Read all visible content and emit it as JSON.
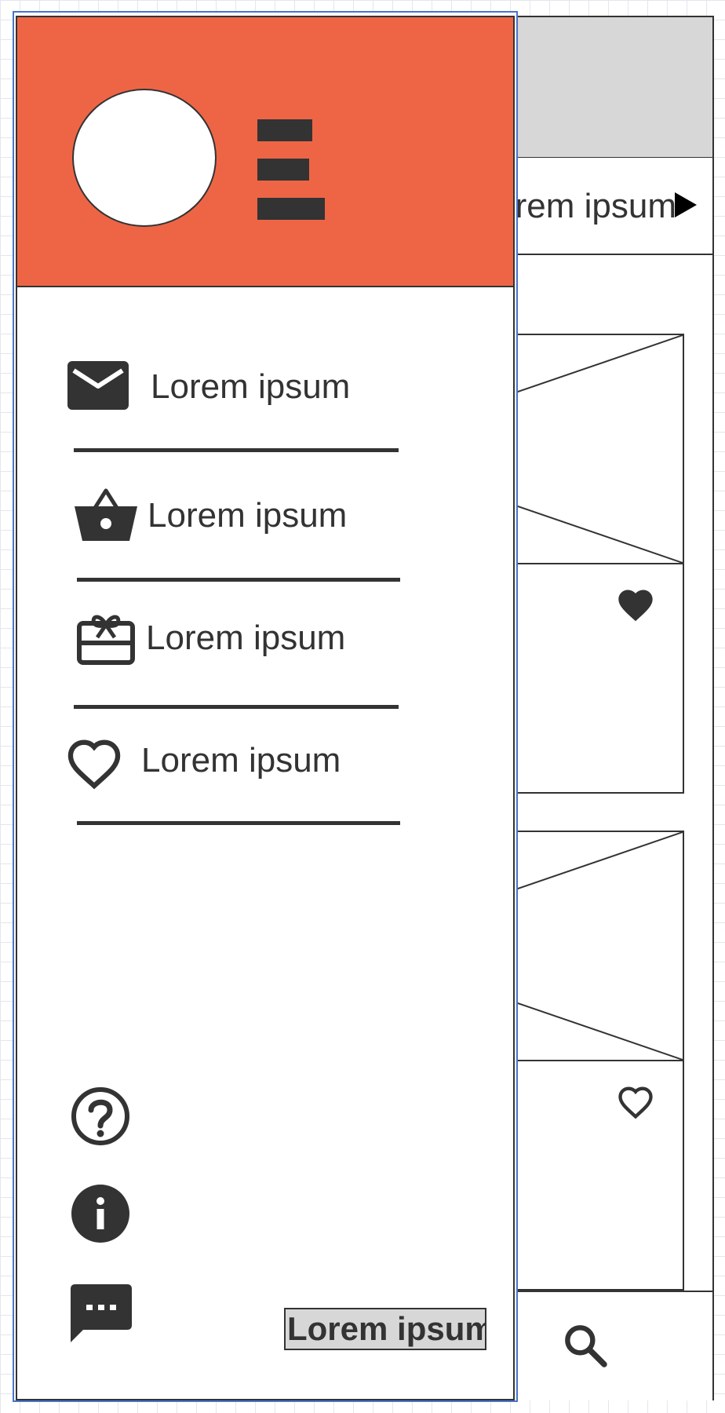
{
  "app": {
    "tab_label": "Lorem ipsum"
  },
  "drawer": {
    "menu": [
      {
        "icon": "mail-icon",
        "label": "Lorem ipsum"
      },
      {
        "icon": "shopping-basket-icon",
        "label": "Lorem ipsum"
      },
      {
        "icon": "gift-card-icon",
        "label": "Lorem ipsum"
      },
      {
        "icon": "heart-outline-icon",
        "label": "Lorem ipsum"
      }
    ],
    "footer_icons": [
      "help-icon",
      "info-icon",
      "chat-icon"
    ],
    "footer_button_label": "Lorem ipsum"
  },
  "colors": {
    "header_accent": "#ee6546",
    "ink": "#333333",
    "placeholder_gray": "#d7d7d7",
    "selection_blue": "#4a74c9"
  }
}
